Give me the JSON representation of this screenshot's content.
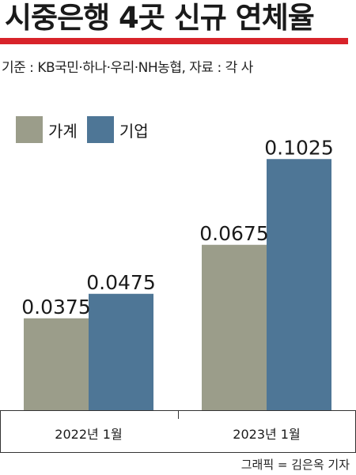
{
  "header": {
    "title": "시중은행 4곳 신규 연체율",
    "basis": "기준 : KB국민·하나·우리·NH농협, 자료 : 각 사"
  },
  "colors": {
    "household": "#9b9d8a",
    "corporate": "#4e7696",
    "accent_rule": "#d8232a"
  },
  "chart_data": {
    "type": "bar",
    "categories": [
      "2022년 1월",
      "2023년 1월"
    ],
    "series": [
      {
        "name": "가계",
        "values": [
          0.0375,
          0.0675
        ]
      },
      {
        "name": "기업",
        "values": [
          0.0475,
          0.1025
        ]
      }
    ],
    "data_labels": [
      [
        "0.0375",
        "0.0675"
      ],
      [
        "0.0475",
        "0.1025"
      ]
    ],
    "ylim": [
      0,
      0.13
    ],
    "grid": false,
    "legend": "top-left"
  },
  "footer": {
    "credit": "그래픽 = 김은옥 기자"
  }
}
